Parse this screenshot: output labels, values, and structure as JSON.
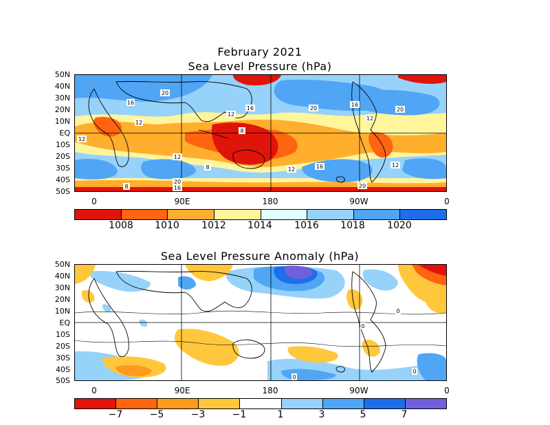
{
  "chart_data": [
    {
      "type": "heatmap",
      "title": "February 2021",
      "subtitle": "Sea Level Pressure (hPa)",
      "y_tick_labels": [
        "50N",
        "40N",
        "30N",
        "20N",
        "10N",
        "EQ",
        "10S",
        "20S",
        "30S",
        "40S",
        "50S"
      ],
      "x_tick_labels": [
        "0",
        "90E",
        "180",
        "90W",
        "0"
      ],
      "colorbar_labels": [
        "1008",
        "1010",
        "1012",
        "1014",
        "1016",
        "1018",
        "1020"
      ],
      "colorbar_colors": [
        "#e0140a",
        "#ff6410",
        "#ffae2e",
        "#fff59c",
        "#e0ffff",
        "#96d2fa",
        "#50a5f5",
        "#1e6eeb"
      ],
      "contour_labels": [
        "20",
        "16",
        "12",
        "16",
        "12",
        "20",
        "16",
        "20",
        "12",
        "8",
        "12",
        "12",
        "8",
        "12",
        "16",
        "20",
        "12",
        "8",
        "20",
        "16"
      ]
    },
    {
      "type": "heatmap",
      "title": "Sea Level Pressure Anomaly (hPa)",
      "y_tick_labels": [
        "50N",
        "40N",
        "30N",
        "20N",
        "10N",
        "EQ",
        "10S",
        "20S",
        "30S",
        "40S",
        "50S"
      ],
      "x_tick_labels": [
        "0",
        "90E",
        "180",
        "90W",
        "0"
      ],
      "colorbar_labels": [
        "−7",
        "−5",
        "−3",
        "−1",
        "1",
        "3",
        "5",
        "7"
      ],
      "colorbar_colors": [
        "#e0140a",
        "#ff6410",
        "#ff9a1e",
        "#ffc83c",
        "#ffffff",
        "#96d2fa",
        "#50a5f5",
        "#1e6eeb",
        "#7060dd"
      ],
      "contour_labels": [
        "0",
        "0",
        "0",
        "0"
      ]
    }
  ]
}
